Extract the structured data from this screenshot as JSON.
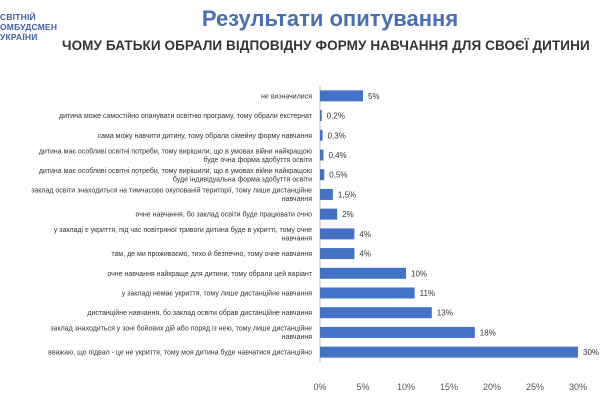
{
  "logo": {
    "lines": [
      "СВІТНІЙ",
      "ОМБУДСМЕН",
      "УКРАЇНИ"
    ]
  },
  "header": {
    "title": "Результати опитування",
    "subtitle": "ЧОМУ БАТЬКИ ОБРАЛИ ВІДПОВІДНУ ФОРМУ НАВЧАННЯ ДЛЯ СВОЄЇ ДИТИНИ"
  },
  "chart_data": {
    "type": "bar",
    "orientation": "horizontal",
    "title": "ЧОМУ БАТЬКИ ОБРАЛИ ВІДПОВІДНУ ФОРМУ НАВЧАННЯ ДЛЯ СВОЄЇ ДИТИНИ",
    "bar_color": "#4472c4",
    "xlim": [
      0,
      30
    ],
    "x_ticks": [
      0,
      5,
      10,
      15,
      20,
      25,
      30
    ],
    "x_tick_labels": [
      "0%",
      "5%",
      "10%",
      "15%",
      "20%",
      "25%",
      "30%"
    ],
    "grid": false,
    "categories": [
      [
        "не визначилися"
      ],
      [
        "дитина може самостійно опанувати освітню програму, тому обрали екстернат"
      ],
      [
        "сама можу навчити дитину, тому обрала сімейну форму навчання"
      ],
      [
        "дитина має особливі освітні потреби, тому вирішили, що в умовах війни найкращою",
        "буде очна форма здобуття освіти"
      ],
      [
        "дитина має особливі освітні потреби, тому вирішили, що в умовах війни найкращою",
        "буде індивідуальна форма здобуття освіти"
      ],
      [
        "заклад освіти знаходиться на тимчасово окупованій території, тому лише дистанційне",
        "навчання"
      ],
      [
        "очне навчання, бо заклад освіти буде працювати очно"
      ],
      [
        "у закладі є укриття, під час повітряної тривоги дитина буде в укритті, тому очне",
        "навчання"
      ],
      [
        "там, де ми проживаємо, тихо й безпечно, тому очне навчання"
      ],
      [
        "очне навчання найкраще для дитини, тому обрали цей варіант"
      ],
      [
        "у закладі немає укриття, тому лише дистанційне навчання"
      ],
      [
        "дистанційне навчання, бо заклад освіти обрав дистанційне навчання"
      ],
      [
        "заклад знаходиться у зоні бойових дій або поряд із нею, тому лише дистанційне",
        "навчання"
      ],
      [
        "вважаю, що підвал - це не укриття, тому моя дитина буде навчатися дистанційно"
      ]
    ],
    "values": [
      5,
      0.2,
      0.3,
      0.4,
      0.5,
      1.5,
      2,
      4,
      4,
      10,
      11,
      13,
      18,
      30
    ],
    "value_labels": [
      "5%",
      "0,2%",
      "0,3%",
      "0,4%",
      "0,5%",
      "1,5%",
      "2%",
      "4%",
      "4%",
      "10%",
      "11%",
      "13%",
      "18%",
      "30%"
    ]
  }
}
